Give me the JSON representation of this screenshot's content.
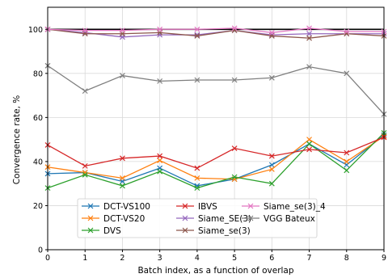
{
  "chart_data": {
    "type": "line",
    "title": "",
    "xlabel": "Batch index, as a function of overlap",
    "ylabel": "Convergence rate, %",
    "xlim": [
      0,
      9
    ],
    "ylim": [
      0,
      110
    ],
    "x": [
      0,
      1,
      2,
      3,
      4,
      5,
      6,
      7,
      8,
      9
    ],
    "x_ticks": [
      "0",
      "1",
      "2",
      "3",
      "4",
      "5",
      "6",
      "7",
      "8",
      "9"
    ],
    "y_ticks": [
      "0",
      "20",
      "40",
      "60",
      "80",
      "100"
    ],
    "grid": true,
    "legend_position": "bottom-center",
    "reference_line": {
      "y": 100,
      "color": "#000000"
    },
    "series": [
      {
        "name": "DCT-VS100",
        "color": "#1f77b4",
        "marker": "x",
        "values": [
          34.5,
          35,
          31,
          37,
          29,
          32,
          38.5,
          48,
          38.5,
          52
        ]
      },
      {
        "name": "DCT-VS20",
        "color": "#ff7f0e",
        "marker": "x",
        "values": [
          37.5,
          35,
          32.5,
          40.5,
          32.5,
          32,
          36.5,
          50,
          40,
          51.5
        ]
      },
      {
        "name": "DVS",
        "color": "#2ca02c",
        "marker": "x",
        "values": [
          28,
          34,
          29,
          35.5,
          28,
          33,
          30,
          48,
          36,
          53
        ]
      },
      {
        "name": "IBVS",
        "color": "#d62728",
        "marker": "x",
        "values": [
          47.5,
          38,
          41.5,
          42.5,
          37,
          46,
          42.5,
          45.5,
          44,
          51
        ]
      },
      {
        "name": "Siame_SE(3)",
        "color": "#9467bd",
        "marker": "x",
        "values": [
          100,
          98.5,
          96.5,
          97.5,
          97.5,
          99.5,
          97.5,
          98,
          98,
          98
        ]
      },
      {
        "name": "Siame_se(3)",
        "color": "#8c564b",
        "marker": "x",
        "values": [
          100,
          98,
          98,
          98.5,
          97,
          99.5,
          97,
          96,
          98,
          97
        ]
      },
      {
        "name": "Siame_se(3)_4",
        "color": "#e377c2",
        "marker": "x",
        "values": [
          100,
          99.5,
          99.5,
          100,
          100,
          100.5,
          98.5,
          100.5,
          99,
          99
        ]
      },
      {
        "name": "VGG Bateux",
        "color": "#7f7f7f",
        "marker": "x",
        "values": [
          83.5,
          72,
          79,
          76.5,
          77,
          77,
          78,
          83,
          80,
          61.5
        ]
      }
    ]
  }
}
